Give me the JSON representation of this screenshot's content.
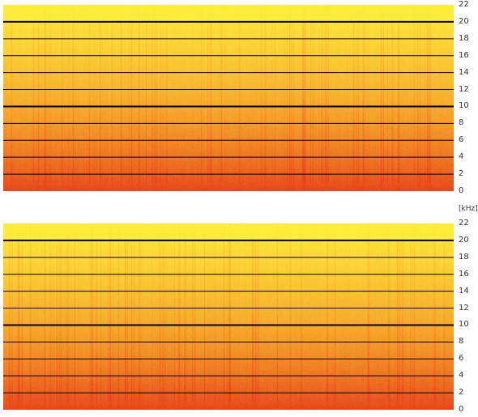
{
  "chart_data": [
    {
      "type": "heatmap",
      "ylabel": "[kHz]",
      "ylim": [
        0,
        22
      ],
      "y_ticks": [
        "22",
        "20",
        "18",
        "16",
        "14",
        "12",
        "10",
        "8",
        "6",
        "4",
        "2",
        "0"
      ],
      "grid": true,
      "thick_gridlines_at": [
        20,
        10
      ],
      "colors": {
        "low": "#e8441a",
        "mid": "#f6a52a",
        "high": "#ffee3c"
      }
    },
    {
      "type": "heatmap",
      "ylabel": "[kHz]",
      "ylim": [
        0,
        22
      ],
      "y_ticks": [
        "22",
        "20",
        "18",
        "16",
        "14",
        "12",
        "10",
        "8",
        "6",
        "4",
        "2",
        "0"
      ],
      "grid": true,
      "thick_gridlines_at": [
        20,
        10
      ],
      "colors": {
        "low": "#e8441a",
        "mid": "#f6a52a",
        "high": "#ffee3c"
      }
    }
  ],
  "axis_unit": "[kHz]"
}
